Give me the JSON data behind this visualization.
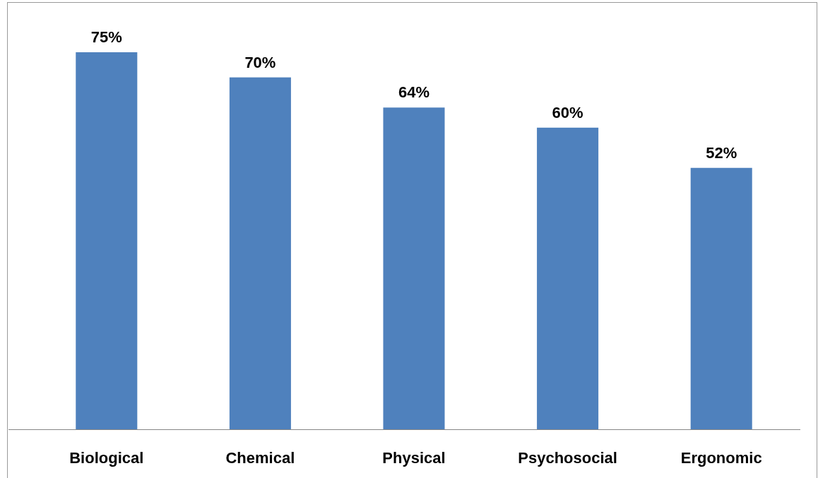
{
  "chart_data": {
    "type": "bar",
    "categories": [
      "Biological",
      "Chemical",
      "Physical",
      "Psychosocial",
      "Ergonomic"
    ],
    "values": [
      75,
      70,
      64,
      60,
      52
    ],
    "color": "#4f81bd",
    "value_labels": [
      "75%",
      "70%",
      "64%",
      "60%",
      "52%"
    ],
    "grid": false,
    "legend": false
  }
}
